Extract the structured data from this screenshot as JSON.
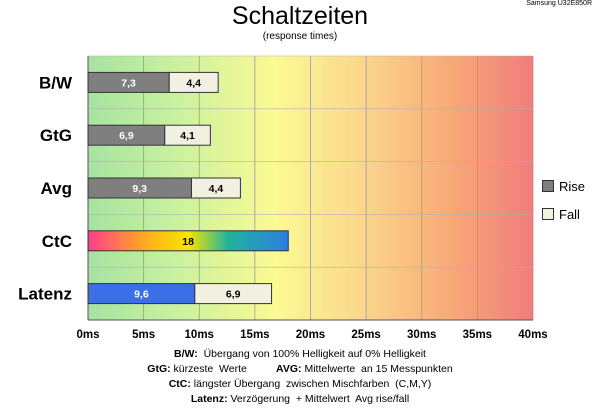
{
  "model": "Samsung U32E850R",
  "notes": [
    {
      "key": "B/W:",
      "text": "  Übergang von 100% Helligkeit auf 0% Helligkeit"
    },
    {
      "key": "GtG:",
      "text": " kürzeste  Werte",
      "key2": "AVG:",
      "text2": " Mittelwerte  an 15 Messpunkten"
    },
    {
      "key": "CtC:",
      "text": " längster Übergang  zwischen Mischfarben  (C,M,Y)"
    },
    {
      "key": "Latenz:",
      "text": " Verzögerung  + Mittelwert  Avg rise/fall"
    }
  ],
  "colors": {
    "rise": "#7f7f7f",
    "fall": "#f2f0e0",
    "latency": "#3a6fe8"
  },
  "chart_data": {
    "type": "bar",
    "orientation": "horizontal",
    "stacked": true,
    "title": "Schaltzeiten",
    "subtitle": "(response times)",
    "categories": [
      "B/W",
      "GtG",
      "Avg",
      "CtC",
      "Latenz"
    ],
    "series": [
      {
        "name": "Rise",
        "values": [
          7.3,
          6.9,
          9.3,
          18,
          9.6
        ]
      },
      {
        "name": "Fall",
        "values": [
          4.4,
          4.1,
          4.4,
          null,
          6.9
        ]
      }
    ],
    "value_labels": {
      "rise": [
        "7,3",
        "6,9",
        "9,3",
        "18",
        "9,6"
      ],
      "fall": [
        "4,4",
        "4,1",
        "4,4",
        "",
        "6,9"
      ]
    },
    "x_ticks": [
      "0ms",
      "5ms",
      "10ms",
      "15ms",
      "20ms",
      "25ms",
      "30ms",
      "35ms",
      "40ms"
    ],
    "xlim": [
      0,
      40
    ],
    "grid": true,
    "background_gradient": "green-yellow-red",
    "legend": "right"
  }
}
